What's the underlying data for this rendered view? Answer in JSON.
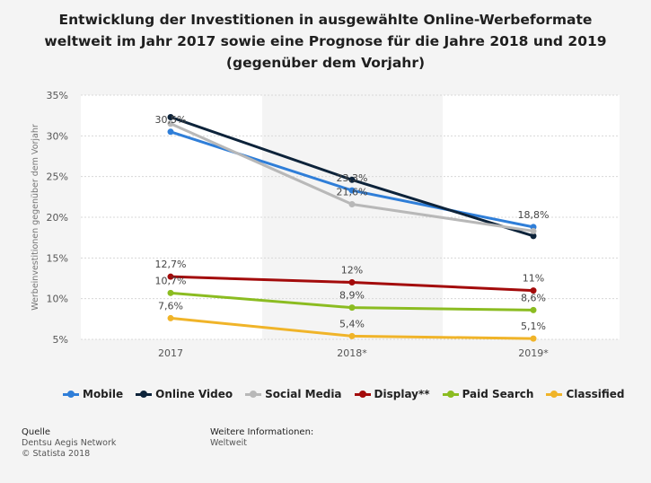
{
  "chart_data": {
    "type": "line",
    "title": "Entwicklung der Investitionen in ausgewählte Online-Werbeformate weltweit im Jahr 2017 sowie eine Prognose für die Jahre 2018 und 2019 (gegenüber dem Vorjahr)",
    "ylabel": "Werbeinvestitionen gegenüber dem Vorjahr",
    "xlabel": "",
    "categories": [
      "2017",
      "2018*",
      "2019*"
    ],
    "ylim": [
      5,
      35
    ],
    "yticks": [
      "5%",
      "10%",
      "15%",
      "20%",
      "25%",
      "30%",
      "35%"
    ],
    "grid": "horizontal",
    "legend_position": "bottom",
    "series": [
      {
        "name": "Mobile",
        "color": "#2f7ed8",
        "values": [
          30.5,
          23.3,
          18.8
        ],
        "labels": [
          "30,5%",
          "23,3%",
          "18,8%"
        ]
      },
      {
        "name": "Online Video",
        "color": "#0d233a",
        "values": [
          32.3,
          24.6,
          17.7
        ],
        "labels": [
          "",
          "",
          ""
        ]
      },
      {
        "name": "Social Media",
        "color": "#b8b8b8",
        "values": [
          31.5,
          21.6,
          18.3
        ],
        "labels": [
          "",
          "21,6%",
          ""
        ]
      },
      {
        "name": "Display**",
        "color": "#a30b0b",
        "values": [
          12.7,
          12.0,
          11.0
        ],
        "labels": [
          "12,7%",
          "12%",
          "11%"
        ]
      },
      {
        "name": "Paid Search",
        "color": "#8bbc21",
        "values": [
          10.7,
          8.9,
          8.6
        ],
        "labels": [
          "10,7%",
          "8,9%",
          "8,6%"
        ]
      },
      {
        "name": "Classified",
        "color": "#f0b429",
        "values": [
          7.6,
          5.4,
          5.1
        ],
        "labels": [
          "7,6%",
          "5,4%",
          "5,1%"
        ]
      }
    ]
  },
  "footer": {
    "source_heading": "Quelle",
    "source_lines": [
      "Dentsu Aegis Network",
      "© Statista 2018"
    ],
    "info_heading": "Weitere Informationen:",
    "info_lines": [
      "Weltweit"
    ]
  }
}
